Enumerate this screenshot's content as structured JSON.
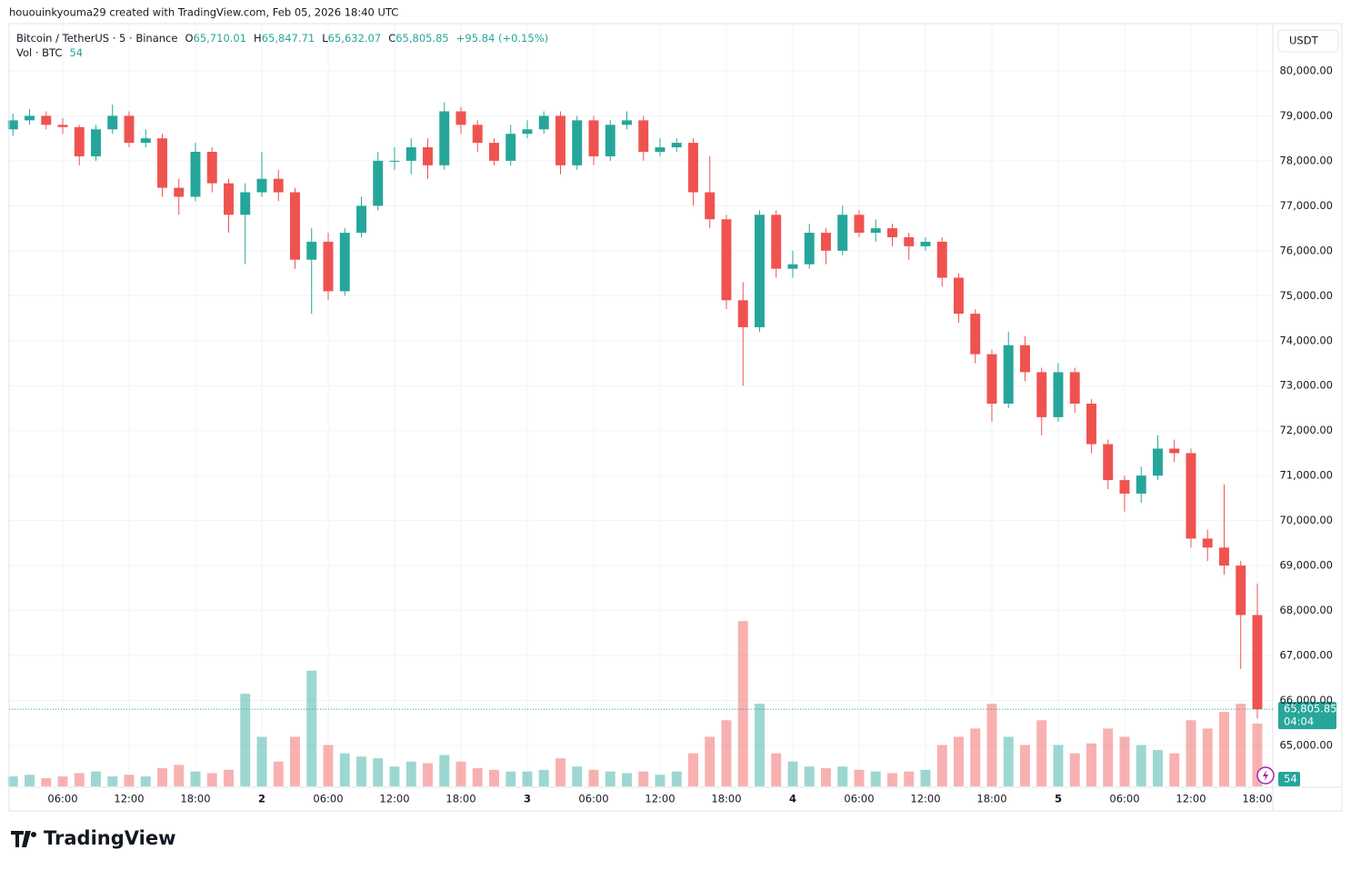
{
  "header": "hououinkyouma29 created with TradingView.com, Feb 05, 2026 18:40 UTC",
  "brand": "TradingView",
  "chart_data": {
    "type": "candlestick",
    "symbol": "Bitcoin / TetherUS · 5 · Binance",
    "ohlc": [
      {
        "key": "O",
        "value": "65,710.01"
      },
      {
        "key": "H",
        "value": "65,847.71"
      },
      {
        "key": "L",
        "value": "65,632.07"
      },
      {
        "key": "C",
        "value": "65,805.85"
      }
    ],
    "change": "+95.84 (+0.15%)",
    "volume_label": "Vol · BTC",
    "volume_last": 54,
    "currency": "USDT",
    "last_price": {
      "value": 65805.85,
      "label": "65,805.85"
    },
    "countdown": "04:04",
    "up_color": "#26a69a",
    "down_color": "#ef5350",
    "grid": true,
    "x": [
      1.5,
      3,
      4.5,
      6,
      7.5,
      9,
      10.5,
      12,
      13.5,
      15,
      16.5,
      18,
      19.5,
      21,
      22.5,
      24,
      25.5,
      27,
      28.5,
      30,
      31.5,
      33,
      34.5,
      36,
      37.5,
      39,
      40.5,
      42,
      43.5,
      45,
      46.5,
      48,
      49.5,
      51,
      52.5,
      54,
      55.5,
      57,
      58.5,
      60,
      61.5,
      63,
      64.5,
      66,
      67.5,
      69,
      70.5,
      72,
      73.5,
      75,
      76.5,
      78,
      79.5,
      81,
      82.5,
      84,
      85.5,
      87,
      88.5,
      90,
      91.5,
      93,
      94.5,
      96,
      97.5,
      99,
      100.5,
      102,
      103.5,
      105,
      106.5,
      108,
      109.5,
      111,
      112.5,
      114
    ],
    "open": [
      78700,
      78900,
      79000,
      78800,
      78750,
      78100,
      78700,
      79000,
      78400,
      78500,
      77400,
      77200,
      78200,
      77500,
      76800,
      77300,
      77600,
      77300,
      75800,
      76200,
      75100,
      76400,
      77000,
      78000,
      78000,
      78300,
      77900,
      79100,
      78800,
      78400,
      78000,
      78600,
      78700,
      79000,
      77900,
      78900,
      78100,
      78800,
      78900,
      78200,
      78300,
      78400,
      77300,
      76700,
      74900,
      74300,
      76800,
      75600,
      75700,
      76400,
      76000,
      76800,
      76400,
      76500,
      76300,
      76100,
      76200,
      75400,
      74600,
      73700,
      72600,
      73900,
      73300,
      72300,
      73300,
      72600,
      71700,
      70900,
      70600,
      71000,
      71600,
      71500,
      69600,
      69400,
      69000,
      67900
    ],
    "high": [
      79050,
      79150,
      79100,
      78950,
      78800,
      78800,
      79250,
      79100,
      78700,
      78600,
      77600,
      78400,
      78300,
      77600,
      77500,
      78200,
      77800,
      77400,
      76500,
      76400,
      76500,
      77200,
      78200,
      78300,
      78500,
      78500,
      79300,
      79200,
      78900,
      78500,
      78800,
      78900,
      79100,
      79100,
      79000,
      79000,
      78900,
      79100,
      79000,
      78500,
      78500,
      78500,
      78100,
      76800,
      75300,
      76900,
      76900,
      76000,
      76600,
      76500,
      77000,
      76900,
      76700,
      76600,
      76400,
      76300,
      76300,
      75500,
      74700,
      73800,
      74200,
      74100,
      73400,
      73500,
      73400,
      72700,
      71800,
      71000,
      71200,
      71900,
      71800,
      71600,
      69800,
      70800,
      69100,
      68600
    ],
    "low": [
      78550,
      78800,
      78700,
      78600,
      77900,
      78000,
      78600,
      78300,
      78300,
      77200,
      76800,
      77100,
      77300,
      76400,
      75700,
      77200,
      77100,
      75600,
      74600,
      74900,
      75000,
      76300,
      76900,
      77800,
      77700,
      77600,
      77800,
      78600,
      78200,
      77900,
      77900,
      78500,
      78600,
      77700,
      77800,
      77900,
      78000,
      78700,
      78000,
      78100,
      78200,
      77000,
      76500,
      74700,
      73000,
      74200,
      75400,
      75400,
      75600,
      75700,
      75900,
      76300,
      76200,
      76100,
      75800,
      76000,
      75200,
      74400,
      73500,
      72200,
      72500,
      73100,
      71900,
      72200,
      72400,
      71500,
      70700,
      70200,
      70400,
      70900,
      71300,
      69400,
      69100,
      68800,
      66700,
      65600
    ],
    "close": [
      78900,
      79000,
      78800,
      78750,
      78100,
      78700,
      79000,
      78400,
      78500,
      77400,
      77200,
      78200,
      77500,
      76800,
      77300,
      77600,
      77300,
      75800,
      76200,
      75100,
      76400,
      77000,
      78000,
      78000,
      78300,
      77900,
      79100,
      78800,
      78400,
      78000,
      78600,
      78700,
      79000,
      77900,
      78900,
      78100,
      78800,
      78900,
      78200,
      78300,
      78400,
      77300,
      76700,
      74900,
      74300,
      76800,
      75600,
      75700,
      76400,
      76000,
      76800,
      76400,
      76500,
      76300,
      76100,
      76200,
      75400,
      74600,
      73700,
      72600,
      73900,
      73300,
      72300,
      73300,
      72600,
      71700,
      70900,
      70600,
      71000,
      71600,
      71500,
      69600,
      69400,
      69000,
      67900,
      65805.85
    ],
    "volume": [
      60,
      70,
      50,
      60,
      80,
      90,
      60,
      70,
      60,
      110,
      130,
      90,
      80,
      100,
      560,
      300,
      150,
      300,
      700,
      250,
      200,
      180,
      170,
      120,
      150,
      140,
      190,
      150,
      110,
      100,
      90,
      90,
      100,
      170,
      120,
      100,
      90,
      80,
      90,
      70,
      90,
      200,
      300,
      400,
      1000,
      500,
      200,
      150,
      120,
      110,
      120,
      100,
      90,
      80,
      90,
      100,
      250,
      300,
      350,
      500,
      300,
      250,
      400,
      250,
      200,
      260,
      350,
      300,
      250,
      220,
      200,
      400,
      350,
      450,
      500,
      380
    ],
    "volume_lim": [
      0,
      1100
    ],
    "xlim": [
      1.15,
      115.4
    ],
    "xticks": [
      {
        "value": 6,
        "label": "06:00"
      },
      {
        "value": 12,
        "label": "12:00"
      },
      {
        "value": 18,
        "label": "18:00"
      },
      {
        "value": 24,
        "label": "2"
      },
      {
        "value": 30,
        "label": "06:00"
      },
      {
        "value": 36,
        "label": "12:00"
      },
      {
        "value": 42,
        "label": "18:00"
      },
      {
        "value": 48,
        "label": "3"
      },
      {
        "value": 54,
        "label": "06:00"
      },
      {
        "value": 60,
        "label": "12:00"
      },
      {
        "value": 66,
        "label": "18:00"
      },
      {
        "value": 72,
        "label": "4"
      },
      {
        "value": 78,
        "label": "06:00"
      },
      {
        "value": 84,
        "label": "12:00"
      },
      {
        "value": 90,
        "label": "18:00"
      },
      {
        "value": 96,
        "label": "5"
      },
      {
        "value": 102,
        "label": "06:00"
      },
      {
        "value": 108,
        "label": "12:00"
      },
      {
        "value": 114,
        "label": "18:00"
      }
    ],
    "ylim": [
      64090,
      81010
    ],
    "yticks": [
      {
        "value": 65000,
        "label": "65,000.00"
      },
      {
        "value": 66000,
        "label": "66,000.00"
      },
      {
        "value": 67000,
        "label": "67,000.00"
      },
      {
        "value": 68000,
        "label": "68,000.00"
      },
      {
        "value": 69000,
        "label": "69,000.00"
      },
      {
        "value": 70000,
        "label": "70,000.00"
      },
      {
        "value": 71000,
        "label": "71,000.00"
      },
      {
        "value": 72000,
        "label": "72,000.00"
      },
      {
        "value": 73000,
        "label": "73,000.00"
      },
      {
        "value": 74000,
        "label": "74,000.00"
      },
      {
        "value": 75000,
        "label": "75,000.00"
      },
      {
        "value": 76000,
        "label": "76,000.00"
      },
      {
        "value": 77000,
        "label": "77,000.00"
      },
      {
        "value": 78000,
        "label": "78,000.00"
      },
      {
        "value": 79000,
        "label": "79,000.00"
      },
      {
        "value": 80000,
        "label": "80,000.00"
      }
    ]
  }
}
